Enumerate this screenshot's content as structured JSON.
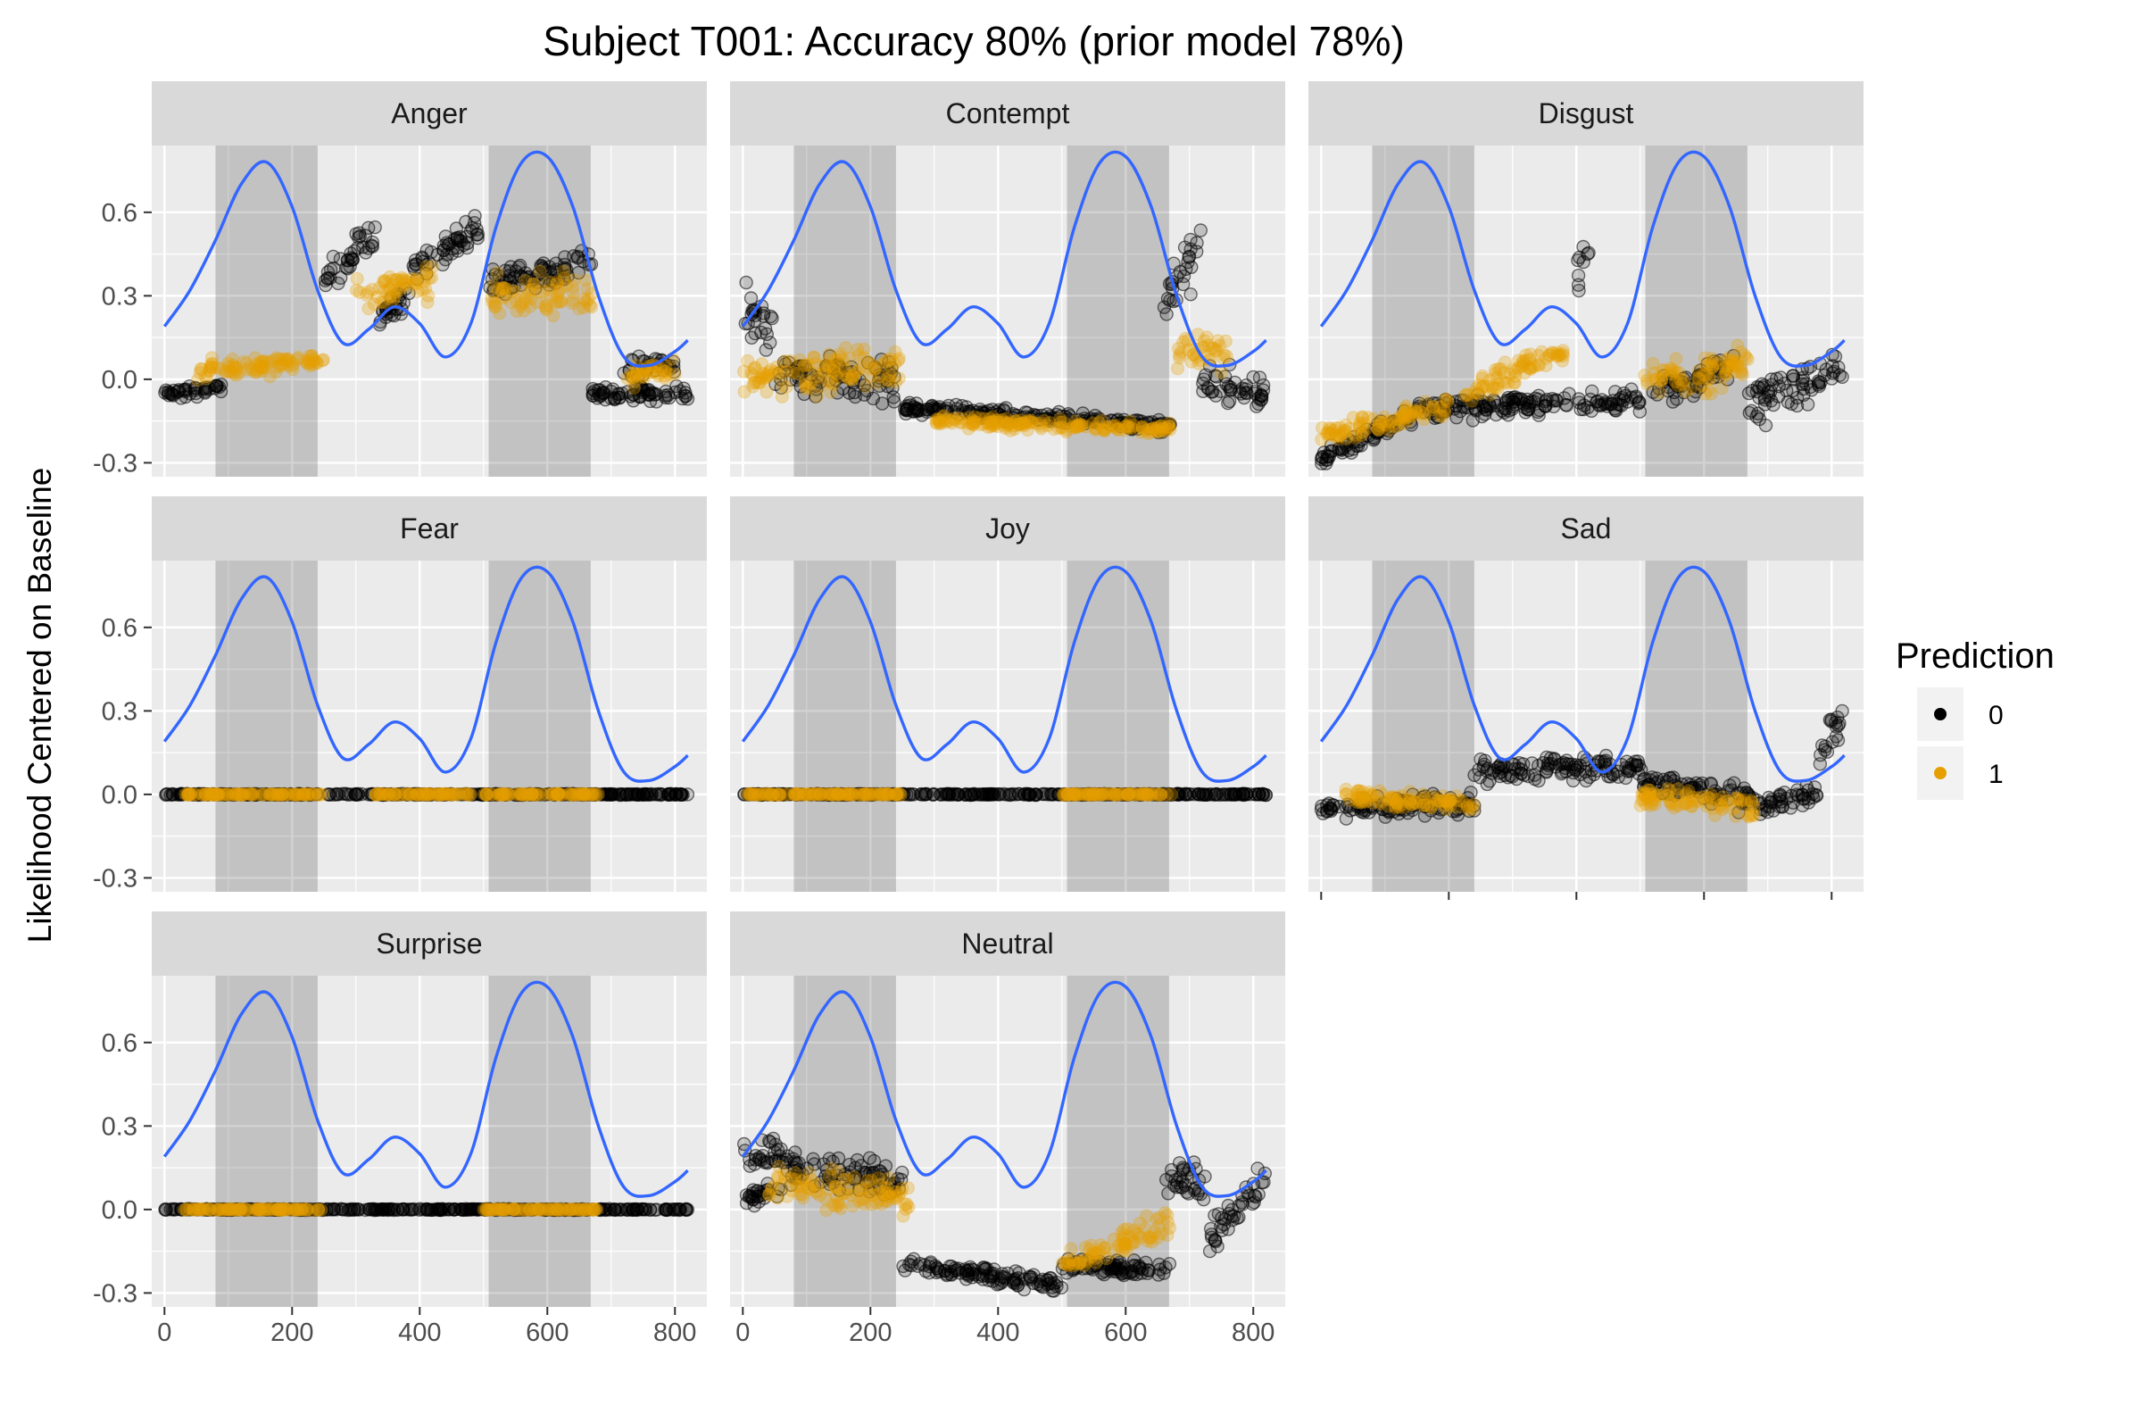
{
  "chart_data": {
    "type": "scatter",
    "title": "Subject T001: Accuracy 80% (prior model 78%)",
    "ylabel": "Likelihood Centered on Baseline",
    "xlabel": "",
    "x_ticks": [
      "0",
      "200",
      "400",
      "600",
      "800"
    ],
    "y_ticks": [
      "0.6",
      "0.3",
      "0.0",
      "-0.3"
    ],
    "xlim": [
      -20,
      850
    ],
    "ylim": [
      -0.35,
      0.84
    ],
    "grid": true,
    "shaded_intervals": [
      [
        80,
        240
      ],
      [
        508,
        668
      ]
    ],
    "legend": {
      "title": "Prediction",
      "placement": "right",
      "entries": [
        {
          "label": "0",
          "color": "#000000"
        },
        {
          "label": "1",
          "color": "#E69F00"
        }
      ]
    },
    "reference_curve": {
      "color": "#3366FF",
      "x": [
        0,
        40,
        80,
        120,
        160,
        200,
        240,
        280,
        320,
        360,
        400,
        440,
        480,
        520,
        560,
        600,
        640,
        680,
        720,
        760,
        800,
        820
      ],
      "y": [
        0.19,
        0.32,
        0.5,
        0.7,
        0.78,
        0.62,
        0.32,
        0.13,
        0.18,
        0.26,
        0.2,
        0.08,
        0.2,
        0.55,
        0.78,
        0.8,
        0.62,
        0.3,
        0.08,
        0.05,
        0.1,
        0.14
      ]
    },
    "panels": [
      {
        "name": "Anger",
        "segments": [
          {
            "x": [
              0,
              90
            ],
            "y": [
              -0.05,
              -0.03
            ],
            "noise": 0.03,
            "pred": 0
          },
          {
            "x": [
              50,
              250
            ],
            "y": [
              0.03,
              0.07
            ],
            "noise": 0.05,
            "pred": 1
          },
          {
            "x": [
              250,
              300
            ],
            "y": [
              0.35,
              0.45
            ],
            "noise": 0.08,
            "pred": 0
          },
          {
            "x": [
              300,
              330
            ],
            "y": [
              0.5,
              0.5
            ],
            "noise": 0.08,
            "pred": 0
          },
          {
            "x": [
              330,
              390
            ],
            "y": [
              0.2,
              0.32
            ],
            "noise": 0.07,
            "pred": 0
          },
          {
            "x": [
              390,
              500
            ],
            "y": [
              0.4,
              0.55
            ],
            "noise": 0.08,
            "pred": 0
          },
          {
            "x": [
              300,
              420
            ],
            "y": [
              0.3,
              0.35
            ],
            "noise": 0.08,
            "pred": 1
          },
          {
            "x": [
              510,
              670
            ],
            "y": [
              0.35,
              0.42
            ],
            "noise": 0.08,
            "pred": 0
          },
          {
            "x": [
              510,
              670
            ],
            "y": [
              0.3,
              0.3
            ],
            "noise": 0.1,
            "pred": 1
          },
          {
            "x": [
              670,
              820
            ],
            "y": [
              -0.05,
              -0.05
            ],
            "noise": 0.04,
            "pred": 0
          },
          {
            "x": [
              720,
              800
            ],
            "y": [
              0.05,
              0.05
            ],
            "noise": 0.05,
            "pred": 0
          },
          {
            "x": [
              720,
              800
            ],
            "y": [
              0.0,
              0.05
            ],
            "noise": 0.06,
            "pred": 1
          }
        ]
      },
      {
        "name": "Contempt",
        "segments": [
          {
            "x": [
              0,
              50
            ],
            "y": [
              0.25,
              0.2
            ],
            "noise": 0.14,
            "pred": 0
          },
          {
            "x": [
              50,
              240
            ],
            "y": [
              0.02,
              0.0
            ],
            "noise": 0.1,
            "pred": 0
          },
          {
            "x": [
              0,
              250
            ],
            "y": [
              0.0,
              0.05
            ],
            "noise": 0.1,
            "pred": 1
          },
          {
            "x": [
              250,
              670
            ],
            "y": [
              -0.1,
              -0.17
            ],
            "noise": 0.03,
            "pred": 0
          },
          {
            "x": [
              300,
              670
            ],
            "y": [
              -0.15,
              -0.18
            ],
            "noise": 0.03,
            "pred": 1
          },
          {
            "x": [
              660,
              720
            ],
            "y": [
              0.3,
              0.45
            ],
            "noise": 0.15,
            "pred": 0
          },
          {
            "x": [
              720,
              820
            ],
            "y": [
              0.0,
              -0.05
            ],
            "noise": 0.1,
            "pred": 0
          },
          {
            "x": [
              680,
              760
            ],
            "y": [
              0.1,
              0.1
            ],
            "noise": 0.1,
            "pred": 1
          }
        ]
      },
      {
        "name": "Disgust",
        "segments": [
          {
            "x": [
              0,
              150
            ],
            "y": [
              -0.28,
              -0.12
            ],
            "noise": 0.05,
            "pred": 0
          },
          {
            "x": [
              0,
              200
            ],
            "y": [
              -0.2,
              -0.1
            ],
            "noise": 0.05,
            "pred": 1
          },
          {
            "x": [
              150,
              500
            ],
            "y": [
              -0.1,
              -0.08
            ],
            "noise": 0.06,
            "pred": 0
          },
          {
            "x": [
              400,
              420
            ],
            "y": [
              0.35,
              0.45
            ],
            "noise": 0.1,
            "pred": 0
          },
          {
            "x": [
              220,
              380
            ],
            "y": [
              -0.05,
              0.1
            ],
            "noise": 0.06,
            "pred": 1
          },
          {
            "x": [
              500,
              670
            ],
            "y": [
              0.0,
              0.05
            ],
            "noise": 0.1,
            "pred": 1
          },
          {
            "x": [
              520,
              650
            ],
            "y": [
              -0.05,
              0.05
            ],
            "noise": 0.07,
            "pred": 0
          },
          {
            "x": [
              670,
              820
            ],
            "y": [
              -0.1,
              0.05
            ],
            "noise": 0.1,
            "pred": 0
          }
        ]
      },
      {
        "name": "Fear",
        "segments": [
          {
            "x": [
              0,
              820
            ],
            "y": [
              0.0,
              0.0
            ],
            "noise": 0.003,
            "pred": 0
          },
          {
            "x": [
              30,
              250
            ],
            "y": [
              0.0,
              0.0
            ],
            "noise": 0.003,
            "pred": 1
          },
          {
            "x": [
              330,
              480
            ],
            "y": [
              0.0,
              0.0
            ],
            "noise": 0.003,
            "pred": 1
          },
          {
            "x": [
              500,
              680
            ],
            "y": [
              0.0,
              0.0
            ],
            "noise": 0.003,
            "pred": 1
          }
        ]
      },
      {
        "name": "Joy",
        "segments": [
          {
            "x": [
              0,
              820
            ],
            "y": [
              0.0,
              0.0
            ],
            "noise": 0.003,
            "pred": 0
          },
          {
            "x": [
              0,
              250
            ],
            "y": [
              0.0,
              0.0
            ],
            "noise": 0.003,
            "pred": 1
          },
          {
            "x": [
              500,
              680
            ],
            "y": [
              0.0,
              0.0
            ],
            "noise": 0.003,
            "pred": 1
          }
        ]
      },
      {
        "name": "Sad",
        "segments": [
          {
            "x": [
              0,
              240
            ],
            "y": [
              -0.05,
              -0.03
            ],
            "noise": 0.05,
            "pred": 0
          },
          {
            "x": [
              30,
              240
            ],
            "y": [
              0.0,
              -0.04
            ],
            "noise": 0.04,
            "pred": 1
          },
          {
            "x": [
              240,
              500
            ],
            "y": [
              0.08,
              0.1
            ],
            "noise": 0.06,
            "pred": 0
          },
          {
            "x": [
              500,
              680
            ],
            "y": [
              0.05,
              -0.02
            ],
            "noise": 0.06,
            "pred": 0
          },
          {
            "x": [
              500,
              680
            ],
            "y": [
              0.0,
              -0.05
            ],
            "noise": 0.06,
            "pred": 1
          },
          {
            "x": [
              680,
              780
            ],
            "y": [
              -0.05,
              0.0
            ],
            "noise": 0.05,
            "pred": 0
          },
          {
            "x": [
              780,
              820
            ],
            "y": [
              0.15,
              0.3
            ],
            "noise": 0.1,
            "pred": 0
          }
        ]
      },
      {
        "name": "Surprise",
        "segments": [
          {
            "x": [
              0,
              820
            ],
            "y": [
              0.0,
              0.0
            ],
            "noise": 0.003,
            "pred": 0
          },
          {
            "x": [
              30,
              250
            ],
            "y": [
              0.0,
              0.0
            ],
            "noise": 0.003,
            "pred": 1
          },
          {
            "x": [
              500,
              680
            ],
            "y": [
              0.0,
              0.0
            ],
            "noise": 0.003,
            "pred": 1
          }
        ]
      },
      {
        "name": "Neutral",
        "segments": [
          {
            "x": [
              0,
              60
            ],
            "y": [
              0.2,
              0.2
            ],
            "noise": 0.08,
            "pred": 0
          },
          {
            "x": [
              0,
              60
            ],
            "y": [
              0.05,
              0.05
            ],
            "noise": 0.06,
            "pred": 0
          },
          {
            "x": [
              60,
              250
            ],
            "y": [
              0.15,
              0.1
            ],
            "noise": 0.08,
            "pred": 0
          },
          {
            "x": [
              40,
              260
            ],
            "y": [
              0.1,
              0.05
            ],
            "noise": 0.1,
            "pred": 1
          },
          {
            "x": [
              250,
              500
            ],
            "y": [
              -0.2,
              -0.27
            ],
            "noise": 0.04,
            "pred": 0
          },
          {
            "x": [
              500,
              670
            ],
            "y": [
              -0.2,
              -0.22
            ],
            "noise": 0.04,
            "pred": 0
          },
          {
            "x": [
              500,
              670
            ],
            "y": [
              -0.2,
              -0.05
            ],
            "noise": 0.07,
            "pred": 1
          },
          {
            "x": [
              660,
              730
            ],
            "y": [
              0.15,
              0.05
            ],
            "noise": 0.12,
            "pred": 0
          },
          {
            "x": [
              730,
              820
            ],
            "y": [
              -0.1,
              0.1
            ],
            "noise": 0.1,
            "pred": 0
          }
        ]
      }
    ]
  }
}
